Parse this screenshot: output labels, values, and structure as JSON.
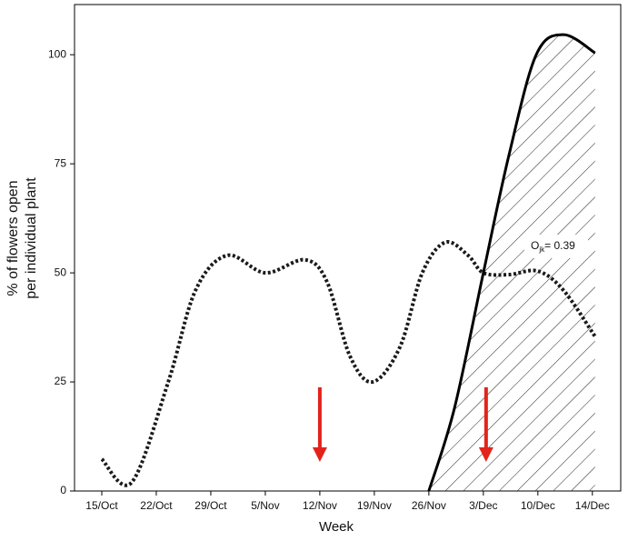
{
  "chart_data": {
    "type": "line",
    "x_label": "Week",
    "y_label": [
      "% of flowers open",
      "per individual plant"
    ],
    "xlim": [
      -0.5,
      9.52
    ],
    "ylim": [
      0,
      111.5
    ],
    "xticks": [
      {
        "value": 0,
        "label": "15/Oct"
      },
      {
        "value": 1,
        "label": "22/Oct"
      },
      {
        "value": 2,
        "label": "29/Oct"
      },
      {
        "value": 3,
        "label": "5/Nov"
      },
      {
        "value": 4,
        "label": "12/Nov"
      },
      {
        "value": 5,
        "label": "19/Nov"
      },
      {
        "value": 6,
        "label": "26/Nov"
      },
      {
        "value": 7,
        "label": "3/Dec"
      },
      {
        "value": 8,
        "label": "10/Dec"
      },
      {
        "value": 9,
        "label": "14/Dec"
      }
    ],
    "yticks": [
      0,
      25,
      50,
      75,
      100
    ],
    "series": [
      {
        "style": "dotted",
        "color": "#1a1a1a",
        "x": [
          0,
          0.55,
          1.22,
          1.72,
          2.3,
          3,
          3.72,
          4.13,
          4.55,
          4.97,
          5.47,
          5.88,
          6.3,
          6.72,
          7,
          7.47,
          8,
          8.47,
          9.05
        ],
        "values": [
          7.3,
          2,
          25,
          46,
          54,
          50,
          53,
          48,
          31,
          25,
          33,
          50,
          57,
          54,
          50,
          49.6,
          50.4,
          46,
          35.4
        ]
      },
      {
        "style": "solid",
        "color": "#000000",
        "hatched": true,
        "x": [
          6,
          6.47,
          7,
          7.47,
          7.97,
          8.47,
          9.05
        ],
        "values": [
          0,
          19,
          50,
          77,
          100,
          104.6,
          100.4
        ]
      }
    ],
    "arrows": [
      {
        "x": 4,
        "color": "#e3231b"
      },
      {
        "x": 7.05,
        "color": "#e3231b"
      }
    ],
    "annotation": {
      "main": "O",
      "sub": "jk",
      "rest": "= 0.39"
    }
  }
}
